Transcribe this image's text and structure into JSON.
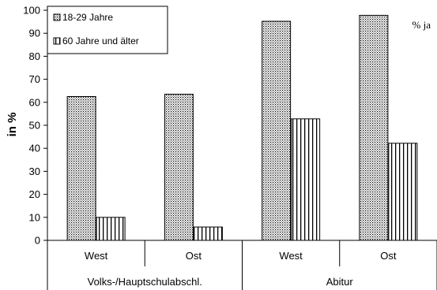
{
  "chart_data": {
    "type": "bar",
    "ylabel": "in %",
    "unit_label": "% ja",
    "ylim": [
      0,
      100
    ],
    "yticks": [
      0,
      10,
      20,
      30,
      40,
      50,
      60,
      70,
      80,
      90,
      100
    ],
    "categories": [
      "West",
      "Ost",
      "West",
      "Ost"
    ],
    "groups": [
      {
        "label": "Volks-/Hauptschulabschl.",
        "categories": [
          "West",
          "Ost"
        ]
      },
      {
        "label": "Abitur",
        "categories": [
          "West",
          "Ost"
        ]
      }
    ],
    "series": [
      {
        "name": "18-29 Jahre",
        "values": [
          62.5,
          63.5,
          95.2,
          97.8
        ],
        "pattern": "dots"
      },
      {
        "name": "60 Jahre und älter",
        "values": [
          10,
          5.8,
          52.8,
          42.2
        ],
        "pattern": "vertical-lines"
      }
    ],
    "legend_position": "top-left",
    "grid": false
  }
}
